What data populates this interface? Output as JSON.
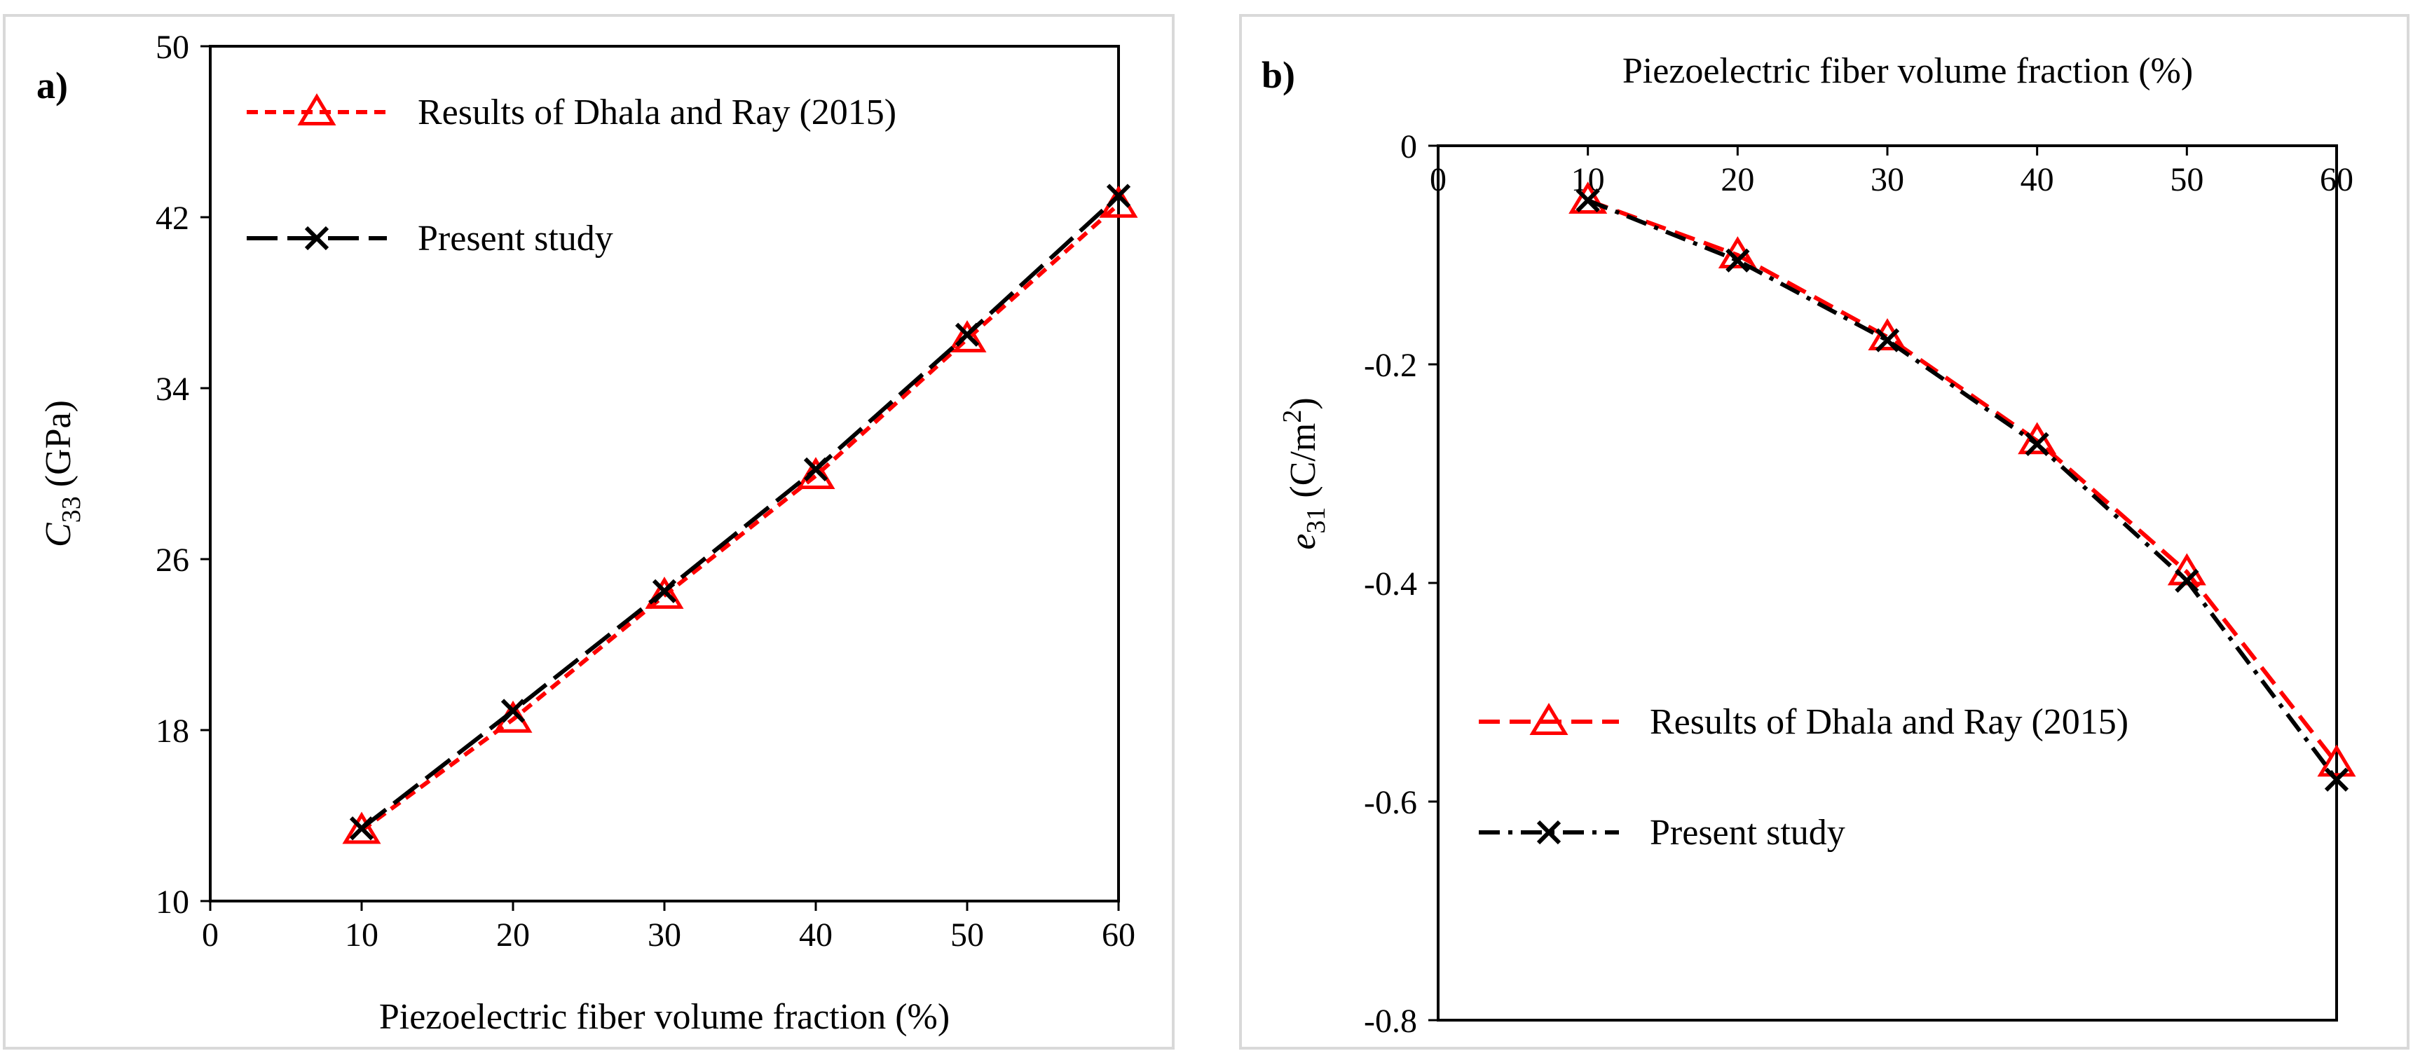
{
  "chart_data": [
    {
      "panel_label": "a)",
      "type": "line",
      "xlabel": "Piezoelectric fiber volume fraction (%)",
      "ylabel_main": "C",
      "ylabel_sub": "33",
      "ylabel_unit": " (GPa)",
      "xlim": [
        0,
        60
      ],
      "ylim": [
        10,
        50
      ],
      "xticks": [
        0,
        10,
        20,
        30,
        40,
        50,
        60
      ],
      "yticks": [
        10,
        18,
        26,
        34,
        42,
        50
      ],
      "x_axis_position": "bottom",
      "legend_position": "top-left",
      "grid": false,
      "series": [
        {
          "name": "Results of Dhala and Ray (2015)",
          "color": "#ff0000",
          "marker": "triangle",
          "line_style": "short-dash",
          "x": [
            10,
            20,
            30,
            40,
            50,
            60
          ],
          "y": [
            13.3,
            18.5,
            24.3,
            29.9,
            36.3,
            42.6
          ]
        },
        {
          "name": "Present study",
          "color": "#000000",
          "marker": "x",
          "line_style": "long-dash",
          "x": [
            10,
            20,
            30,
            40,
            50,
            60
          ],
          "y": [
            13.4,
            18.9,
            24.5,
            30.2,
            36.5,
            43.0
          ]
        }
      ]
    },
    {
      "panel_label": "b)",
      "type": "line",
      "xlabel": "Piezoelectric fiber volume fraction (%)",
      "ylabel_main": "e",
      "ylabel_sub": "31",
      "ylabel_unit": " (C/m",
      "ylabel_sup": "2",
      "ylabel_close": ")",
      "xlim": [
        0,
        60
      ],
      "ylim": [
        -0.8,
        0
      ],
      "xticks": [
        0,
        10,
        20,
        30,
        40,
        50,
        60
      ],
      "yticks": [
        -0.8,
        -0.6,
        -0.4,
        -0.2,
        0
      ],
      "ytick_labels": [
        "-0.8",
        "-0.6",
        "-0.4",
        "-0.2",
        "0"
      ],
      "x_axis_position": "top",
      "legend_position": "bottom-left",
      "grid": false,
      "series": [
        {
          "name": "Results of Dhala and Ray (2015)",
          "color": "#ff0000",
          "marker": "triangle",
          "line_style": "dash",
          "x": [
            10,
            20,
            30,
            40,
            50,
            60
          ],
          "y": [
            -0.05,
            -0.1,
            -0.175,
            -0.27,
            -0.39,
            -0.565
          ]
        },
        {
          "name": "Present study",
          "color": "#000000",
          "marker": "x",
          "line_style": "dash-dot",
          "x": [
            10,
            20,
            30,
            40,
            50,
            60
          ],
          "y": [
            -0.05,
            -0.105,
            -0.178,
            -0.273,
            -0.398,
            -0.58
          ]
        }
      ]
    }
  ]
}
